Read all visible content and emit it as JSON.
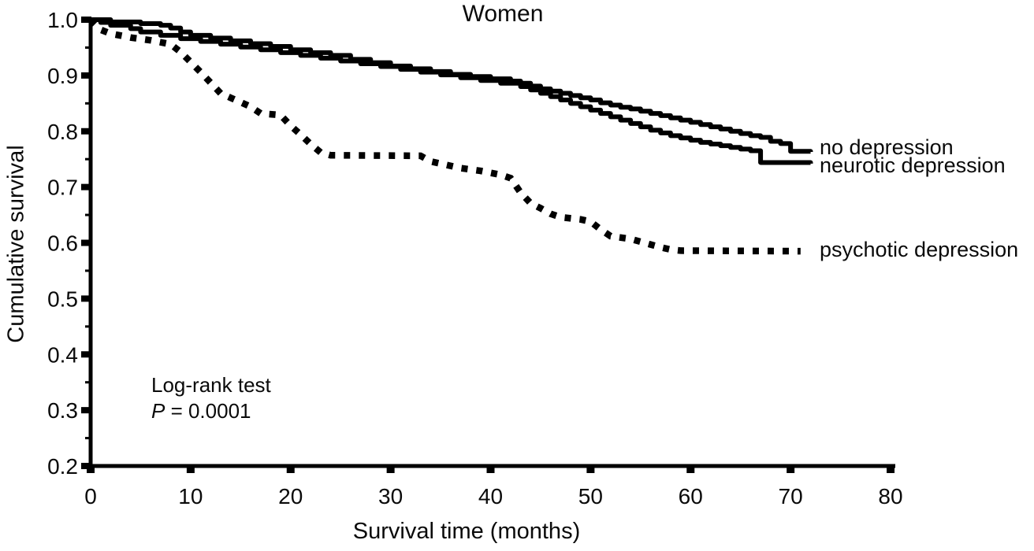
{
  "chart_data": {
    "type": "line",
    "subtype": "kaplan-meier-step",
    "title": "Women",
    "xlabel": "Survival time (months)",
    "ylabel": "Cumulative survival",
    "xlim": [
      0,
      80
    ],
    "ylim": [
      0.2,
      1.0
    ],
    "x_ticks": [
      "0",
      "10",
      "20",
      "30",
      "40",
      "50",
      "60",
      "70",
      "80"
    ],
    "y_ticks": [
      "1.0",
      "0.9",
      "0.8",
      "0.7",
      "0.6",
      "0.5",
      "0.4",
      "0.3",
      "0.2"
    ],
    "y_minor_ticks": [
      0.95,
      0.85,
      0.75,
      0.65,
      0.55,
      0.45,
      0.35,
      0.25
    ],
    "grid": false,
    "line_color": "#000000",
    "background_color": "#ffffff",
    "legend_position": "right-of-curve-ends",
    "annotation": {
      "line1": "Log-rank test",
      "p_symbol": "P",
      "p_value": " = 0.0001"
    },
    "series": [
      {
        "name": "no_depression",
        "label": "no depression",
        "style": "solid",
        "points": [
          [
            0,
            1.0
          ],
          [
            2,
            0.996
          ],
          [
            5,
            0.993
          ],
          [
            7,
            0.99
          ],
          [
            8,
            0.985
          ],
          [
            9,
            0.978
          ],
          [
            10,
            0.972
          ],
          [
            12,
            0.967
          ],
          [
            14,
            0.962
          ],
          [
            16,
            0.957
          ],
          [
            18,
            0.952
          ],
          [
            20,
            0.946
          ],
          [
            22,
            0.941
          ],
          [
            24,
            0.936
          ],
          [
            26,
            0.929
          ],
          [
            28,
            0.923
          ],
          [
            30,
            0.917
          ],
          [
            32,
            0.912
          ],
          [
            34,
            0.907
          ],
          [
            36,
            0.902
          ],
          [
            38,
            0.898
          ],
          [
            40,
            0.894
          ],
          [
            42,
            0.89
          ],
          [
            43,
            0.886
          ],
          [
            44,
            0.881
          ],
          [
            45,
            0.876
          ],
          [
            46,
            0.872
          ],
          [
            47,
            0.868
          ],
          [
            48,
            0.864
          ],
          [
            49,
            0.86
          ],
          [
            50,
            0.856
          ],
          [
            51,
            0.851
          ],
          [
            52,
            0.847
          ],
          [
            53,
            0.843
          ],
          [
            54,
            0.84
          ],
          [
            55,
            0.836
          ],
          [
            56,
            0.832
          ],
          [
            57,
            0.828
          ],
          [
            58,
            0.824
          ],
          [
            59,
            0.82
          ],
          [
            60,
            0.816
          ],
          [
            61,
            0.812
          ],
          [
            62,
            0.808
          ],
          [
            63,
            0.804
          ],
          [
            64,
            0.8
          ],
          [
            65,
            0.796
          ],
          [
            66,
            0.792
          ],
          [
            67,
            0.789
          ],
          [
            68,
            0.782
          ],
          [
            69,
            0.778
          ],
          [
            70,
            0.764
          ],
          [
            72,
            0.763
          ]
        ]
      },
      {
        "name": "neurotic_depression",
        "label": "neurotic depression",
        "style": "solid",
        "points": [
          [
            0,
            1.0
          ],
          [
            1,
            0.995
          ],
          [
            2,
            0.99
          ],
          [
            4,
            0.984
          ],
          [
            5,
            0.978
          ],
          [
            7,
            0.972
          ],
          [
            9,
            0.966
          ],
          [
            11,
            0.961
          ],
          [
            13,
            0.956
          ],
          [
            15,
            0.951
          ],
          [
            17,
            0.946
          ],
          [
            19,
            0.941
          ],
          [
            21,
            0.936
          ],
          [
            23,
            0.931
          ],
          [
            25,
            0.926
          ],
          [
            27,
            0.921
          ],
          [
            29,
            0.916
          ],
          [
            31,
            0.911
          ],
          [
            33,
            0.906
          ],
          [
            35,
            0.901
          ],
          [
            37,
            0.896
          ],
          [
            39,
            0.891
          ],
          [
            41,
            0.886
          ],
          [
            43,
            0.88
          ],
          [
            44,
            0.874
          ],
          [
            45,
            0.868
          ],
          [
            46,
            0.862
          ],
          [
            47,
            0.856
          ],
          [
            48,
            0.85
          ],
          [
            49,
            0.844
          ],
          [
            50,
            0.838
          ],
          [
            51,
            0.832
          ],
          [
            52,
            0.826
          ],
          [
            53,
            0.82
          ],
          [
            54,
            0.814
          ],
          [
            55,
            0.808
          ],
          [
            56,
            0.802
          ],
          [
            57,
            0.797
          ],
          [
            58,
            0.792
          ],
          [
            59,
            0.788
          ],
          [
            60,
            0.784
          ],
          [
            61,
            0.78
          ],
          [
            62,
            0.777
          ],
          [
            63,
            0.774
          ],
          [
            64,
            0.771
          ],
          [
            65,
            0.768
          ],
          [
            66,
            0.765
          ],
          [
            67,
            0.744
          ],
          [
            72,
            0.742
          ]
        ]
      },
      {
        "name": "psychotic_depression",
        "label": "psychotic depression",
        "style": "dotted",
        "points": [
          [
            0,
            1.0
          ],
          [
            1,
            0.982
          ],
          [
            2,
            0.975
          ],
          [
            4,
            0.968
          ],
          [
            6,
            0.963
          ],
          [
            8,
            0.956
          ],
          [
            9,
            0.942
          ],
          [
            10,
            0.924
          ],
          [
            11,
            0.906
          ],
          [
            12,
            0.887
          ],
          [
            13,
            0.868
          ],
          [
            14,
            0.86
          ],
          [
            15,
            0.852
          ],
          [
            16,
            0.844
          ],
          [
            17,
            0.832
          ],
          [
            19,
            0.829
          ],
          [
            20,
            0.81
          ],
          [
            21,
            0.794
          ],
          [
            22,
            0.777
          ],
          [
            23,
            0.762
          ],
          [
            24,
            0.757
          ],
          [
            33,
            0.756
          ],
          [
            34,
            0.746
          ],
          [
            35,
            0.742
          ],
          [
            37,
            0.734
          ],
          [
            39,
            0.729
          ],
          [
            41,
            0.722
          ],
          [
            42,
            0.716
          ],
          [
            43,
            0.69
          ],
          [
            44,
            0.671
          ],
          [
            45,
            0.662
          ],
          [
            46,
            0.652
          ],
          [
            47,
            0.646
          ],
          [
            49,
            0.642
          ],
          [
            50,
            0.638
          ],
          [
            51,
            0.624
          ],
          [
            52,
            0.612
          ],
          [
            54,
            0.607
          ],
          [
            56,
            0.597
          ],
          [
            57,
            0.592
          ],
          [
            58,
            0.588
          ],
          [
            59,
            0.586
          ],
          [
            71,
            0.585
          ]
        ]
      }
    ]
  }
}
